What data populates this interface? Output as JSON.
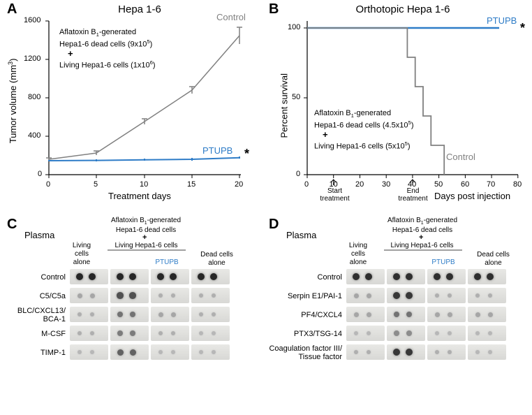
{
  "panelA": {
    "label": "A",
    "title": "Hepa 1-6",
    "ylabel": "Tumor volume (mm³)",
    "xlabel": "Treatment days",
    "control_label": "Control",
    "ptupb_label": "PTUPB",
    "asterisk": "*",
    "annotation_line1": "Aflatoxin B₁-generated",
    "annotation_line2": "Hepa1-6 dead cells (9x10⁵)",
    "annotation_line3": "+",
    "annotation_line4": "Living Hepa1-6 cells (1x10⁶)",
    "xticks": [
      "0",
      "5",
      "10",
      "15",
      "20"
    ],
    "yticks": [
      "0",
      "400",
      "800",
      "1200",
      "1600"
    ],
    "control_color": "#808080",
    "ptupb_color": "#2e7cc7",
    "control_data": [
      [
        0,
        160
      ],
      [
        5,
        225
      ],
      [
        10,
        555
      ],
      [
        15,
        880
      ],
      [
        20,
        1450
      ]
    ],
    "ptupb_data": [
      [
        0,
        145
      ],
      [
        5,
        148
      ],
      [
        10,
        155
      ],
      [
        15,
        160
      ],
      [
        20,
        177
      ]
    ],
    "yerr_control": [
      15,
      20,
      25,
      40,
      90
    ],
    "yerr_ptupb": [
      8,
      8,
      10,
      10,
      12
    ]
  },
  "panelB": {
    "label": "B",
    "title": "Orthotopic Hepa 1-6",
    "ylabel": "Percent survival",
    "xlabel": "Days post injection",
    "control_label": "Control",
    "ptupb_label": "PTUPB",
    "asterisk": "*",
    "annotation_line1": "Aflatoxin B₁-generated",
    "annotation_line2": "Hepa1-6 dead cells (4.5x10⁵)",
    "annotation_line3": "+",
    "annotation_line4": "Living Hepa1-6 cells (5x10⁵)",
    "start_arrow": "Start\ntreatment",
    "end_arrow": "End\ntreatment",
    "start_day": 10,
    "end_day": 40,
    "xticks": [
      "0",
      "10",
      "20",
      "30",
      "40",
      "50",
      "60",
      "70",
      "80"
    ],
    "yticks": [
      "0",
      "50",
      "100"
    ],
    "control_color": "#808080",
    "ptupb_color": "#2e7cc7",
    "survival_control": [
      [
        0,
        100
      ],
      [
        38,
        100
      ],
      [
        38,
        80
      ],
      [
        41,
        80
      ],
      [
        41,
        60
      ],
      [
        44,
        60
      ],
      [
        44,
        40
      ],
      [
        47,
        40
      ],
      [
        47,
        20
      ],
      [
        52,
        20
      ],
      [
        52,
        0
      ]
    ],
    "survival_ptupb": [
      [
        0,
        100
      ],
      [
        73,
        100
      ]
    ]
  },
  "panelC": {
    "label": "C",
    "plasma_label": "Plasma",
    "header_main1": "Aflatoxin B₁-generated",
    "header_main2": "Hepa1-6 dead cells",
    "header_plus": "+",
    "header_main3": "Living Hepa1-6 cells",
    "col1": "Living\ncells\nalone",
    "col2": "",
    "col3": "PTUPB",
    "col4": "Dead cells\nalone",
    "rows": [
      "Control",
      "C5/C5a",
      "BLC/CXCL13/\nBCA-1",
      "M-CSF",
      "TIMP-1"
    ]
  },
  "panelD": {
    "label": "D",
    "plasma_label": "Plasma",
    "header_main1": "Aflatoxin B₁-generated",
    "header_main2": "Hepa1-6 dead cells",
    "header_plus": "+",
    "header_main3": "Living Hepa1-6 cells",
    "col1": "Living\ncells\nalone",
    "col2": "",
    "col3": "PTUPB",
    "col4": "Dead cells\nalone",
    "rows": [
      "Control",
      "Serpin E1/PAI-1",
      "PF4/CXCL4",
      "PTX3/TSG-14",
      "Coagulation factor III/\nTissue factor"
    ]
  },
  "colors": {
    "axis": "#000000",
    "gridline": "#000000",
    "grid": "#e0e0e0",
    "background": "#ffffff",
    "ptupb": "#2e7cc7",
    "control": "#808080",
    "blot_bg": "#dcdcd8"
  },
  "blot_intensity": {
    "C": {
      "Control": [
        0.95,
        0.95,
        0.95,
        0.95
      ],
      "C5/C5a": [
        0.2,
        0.7,
        0.15,
        0.15
      ],
      "BLC": [
        0.15,
        0.5,
        0.2,
        0.15
      ],
      "M-CSF": [
        0.15,
        0.45,
        0.15,
        0.1
      ],
      "TIMP-1": [
        0.1,
        0.6,
        0.1,
        0.1
      ]
    },
    "D": {
      "Control": [
        0.9,
        0.9,
        0.9,
        0.9
      ],
      "Serpin": [
        0.2,
        0.85,
        0.15,
        0.15
      ],
      "PF4": [
        0.2,
        0.5,
        0.2,
        0.2
      ],
      "PTX3": [
        0.1,
        0.35,
        0.1,
        0.1
      ],
      "Coag": [
        0.15,
        0.85,
        0.15,
        0.1
      ]
    }
  }
}
